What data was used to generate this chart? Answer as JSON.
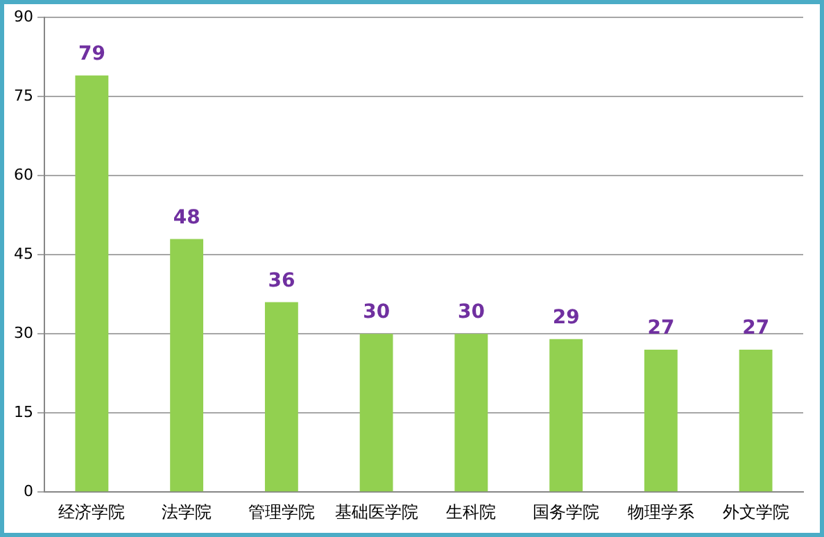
{
  "chart_data": {
    "type": "bar",
    "categories": [
      "经济学院",
      "法学院",
      "管理学院",
      "基础医学院",
      "生科院",
      "国务学院",
      "物理学系",
      "外文学院"
    ],
    "values": [
      79,
      48,
      36,
      30,
      30,
      29,
      27,
      27
    ],
    "color": "#92d050",
    "ylim": [
      0,
      90
    ],
    "yticks": [
      0,
      15,
      30,
      45,
      60,
      75,
      90
    ],
    "grid": "y",
    "legend": false,
    "data_labels": true
  }
}
